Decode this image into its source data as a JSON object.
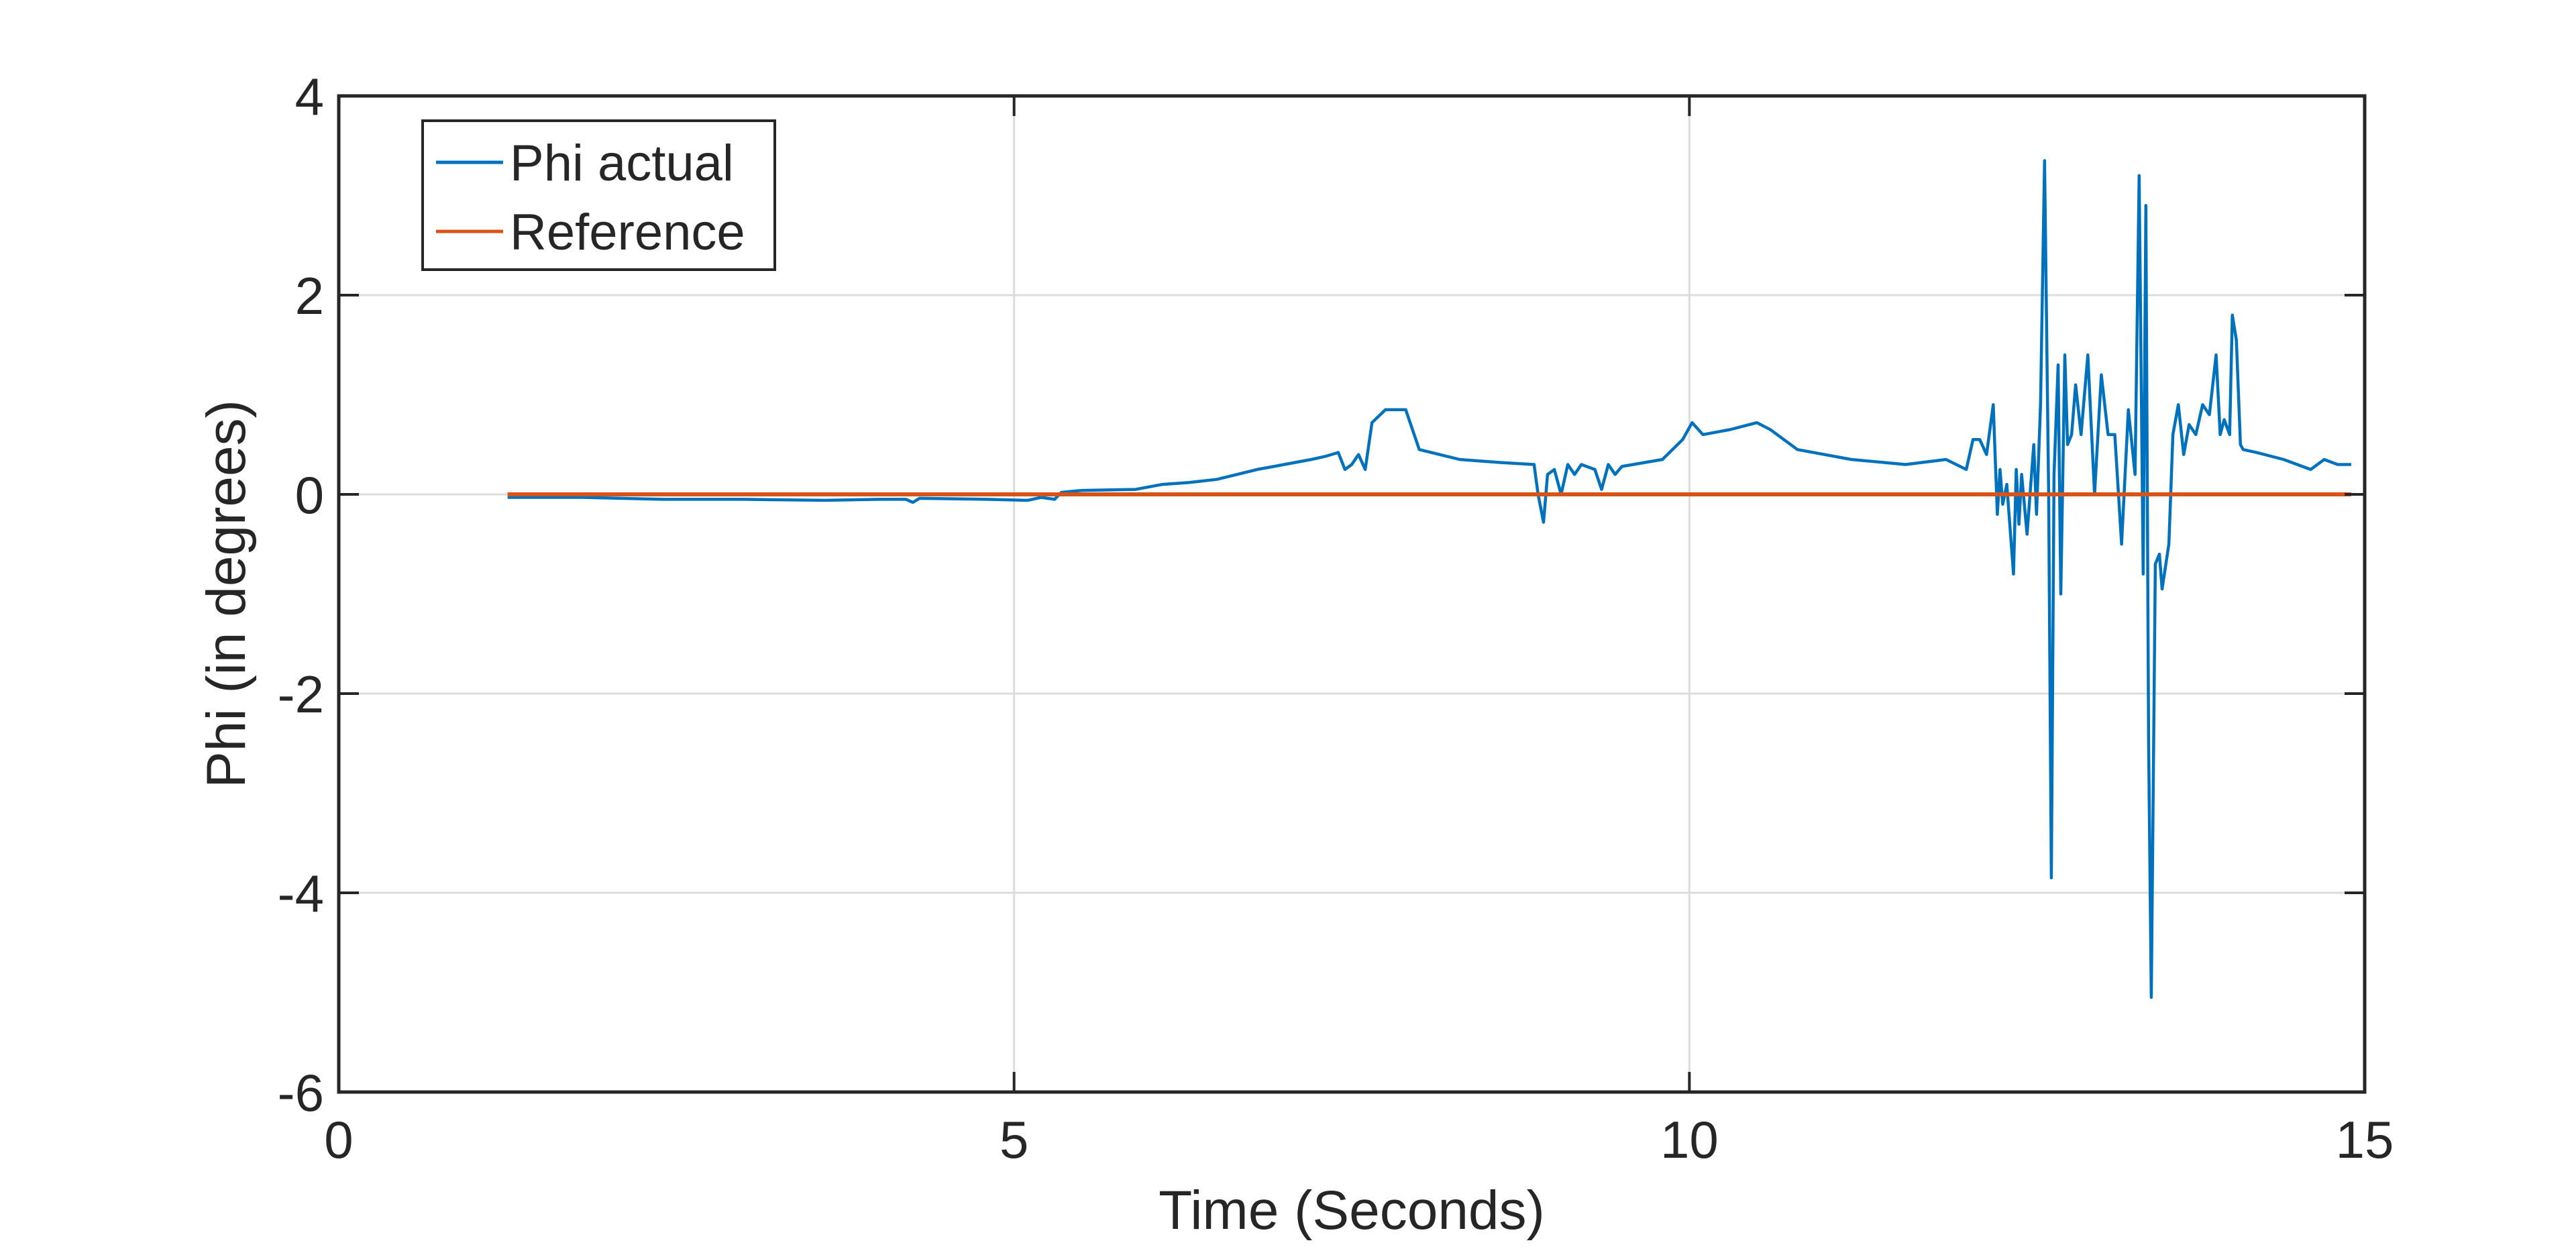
{
  "chart_data": {
    "type": "line",
    "xlabel": "Time (Seconds)",
    "ylabel": "Phi (in degrees)",
    "xlim": [
      0,
      15
    ],
    "ylim": [
      -6,
      4
    ],
    "xticks": [
      0,
      5,
      10,
      15
    ],
    "yticks": [
      -6,
      -4,
      -2,
      0,
      2,
      4
    ],
    "grid": true,
    "legend_position": "top-left",
    "series": [
      {
        "name": "Phi actual",
        "color": "#0072BD",
        "x": [
          1.25,
          1.8,
          2.4,
          3.0,
          3.6,
          4.0,
          4.2,
          4.25,
          4.3,
          4.8,
          5.1,
          5.2,
          5.3,
          5.35,
          5.5,
          5.9,
          6.1,
          6.3,
          6.5,
          6.8,
          7.0,
          7.2,
          7.3,
          7.4,
          7.45,
          7.5,
          7.55,
          7.6,
          7.65,
          7.75,
          7.9,
          8.0,
          8.3,
          8.6,
          8.85,
          8.88,
          8.92,
          8.95,
          9.0,
          9.05,
          9.1,
          9.15,
          9.2,
          9.3,
          9.35,
          9.4,
          9.45,
          9.5,
          9.8,
          9.95,
          10.02,
          10.1,
          10.3,
          10.5,
          10.6,
          10.8,
          11.2,
          11.6,
          11.9,
          12.05,
          12.1,
          12.15,
          12.2,
          12.25,
          12.28,
          12.3,
          12.32,
          12.35,
          12.4,
          12.42,
          12.44,
          12.46,
          12.5,
          12.55,
          12.57,
          12.6,
          12.63,
          12.66,
          12.68,
          12.7,
          12.73,
          12.75,
          12.78,
          12.8,
          12.83,
          12.86,
          12.9,
          12.95,
          13.0,
          13.05,
          13.1,
          13.15,
          13.2,
          13.25,
          13.3,
          13.33,
          13.36,
          13.38,
          13.4,
          13.42,
          13.45,
          13.48,
          13.5,
          13.55,
          13.58,
          13.62,
          13.66,
          13.7,
          13.75,
          13.8,
          13.85,
          13.9,
          13.93,
          13.96,
          14.0,
          14.02,
          14.05,
          14.08,
          14.1,
          14.2,
          14.4,
          14.6,
          14.7,
          14.8,
          14.9
        ],
        "y": [
          -0.03,
          -0.03,
          -0.05,
          -0.05,
          -0.06,
          -0.05,
          -0.05,
          -0.08,
          -0.04,
          -0.05,
          -0.06,
          -0.03,
          -0.05,
          0.02,
          0.04,
          0.05,
          0.1,
          0.12,
          0.15,
          0.25,
          0.3,
          0.35,
          0.38,
          0.42,
          0.25,
          0.3,
          0.4,
          0.25,
          0.72,
          0.85,
          0.85,
          0.45,
          0.35,
          0.32,
          0.3,
          0.0,
          -0.28,
          0.2,
          0.25,
          0.0,
          0.3,
          0.2,
          0.3,
          0.25,
          0.05,
          0.3,
          0.2,
          0.28,
          0.35,
          0.55,
          0.72,
          0.6,
          0.65,
          0.72,
          0.65,
          0.45,
          0.35,
          0.3,
          0.35,
          0.25,
          0.55,
          0.55,
          0.4,
          0.9,
          -0.2,
          0.25,
          -0.1,
          0.1,
          -0.8,
          0.25,
          -0.3,
          0.2,
          -0.4,
          0.5,
          -0.2,
          0.9,
          3.35,
          0.0,
          -3.85,
          0.2,
          1.3,
          -1.0,
          1.4,
          0.5,
          0.6,
          1.1,
          0.6,
          1.4,
          0.0,
          1.2,
          0.6,
          0.6,
          -0.5,
          0.85,
          0.2,
          3.2,
          -0.8,
          2.9,
          -2.5,
          -5.05,
          -0.7,
          -0.6,
          -0.95,
          -0.5,
          0.6,
          0.9,
          0.4,
          0.7,
          0.6,
          0.9,
          0.8,
          1.4,
          0.6,
          0.75,
          0.6,
          1.8,
          1.55,
          0.5,
          0.45,
          0.42,
          0.35,
          0.25,
          0.35,
          0.3,
          0.3
        ]
      },
      {
        "name": "Reference",
        "color": "#D95319",
        "x": [
          1.25,
          14.9
        ],
        "y": [
          0,
          0
        ]
      }
    ]
  }
}
